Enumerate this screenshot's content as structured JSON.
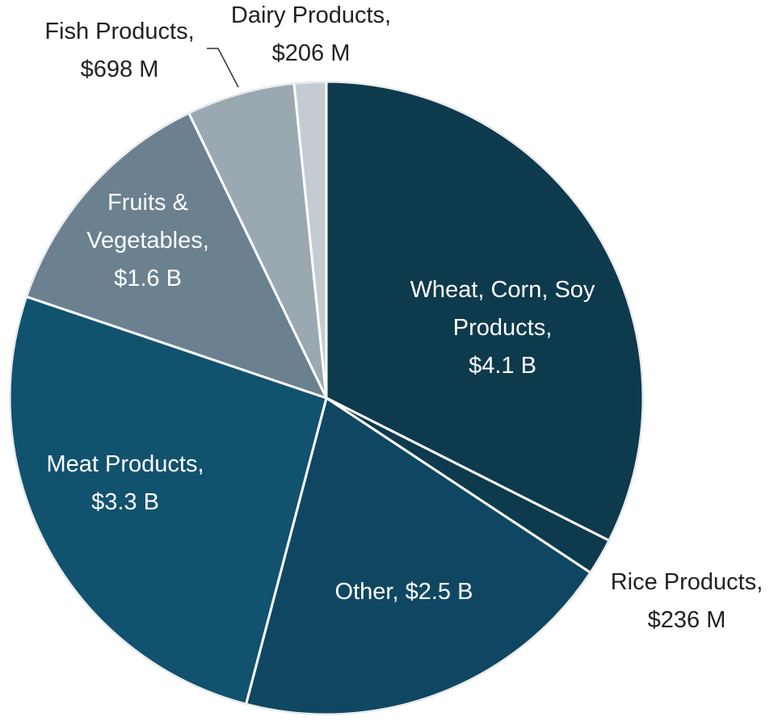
{
  "chart_data": {
    "type": "pie",
    "start_angle": "12 o'clock",
    "direction": "clockwise",
    "slices": [
      {
        "name": "Wheat, Corn, Soy Products",
        "value": 4.1,
        "label_lines": [
          "Wheat, Corn, Soy",
          "Products,",
          "$4.1 B"
        ],
        "color": "#0e3a4e",
        "text_color": "#ffffff"
      },
      {
        "name": "Rice Products",
        "value": 0.236,
        "label_lines": [
          "Rice Products,",
          "$236 M"
        ],
        "color": "#0e3a4e",
        "text_color": "#222222"
      },
      {
        "name": "Other",
        "value": 2.5,
        "label_lines": [
          "Other, $2.5 B"
        ],
        "color": "#0f4762",
        "text_color": "#ffffff"
      },
      {
        "name": "Meat Products",
        "value": 3.3,
        "label_lines": [
          "Meat Products,",
          "$3.3 B"
        ],
        "color": "#11526f",
        "text_color": "#ffffff"
      },
      {
        "name": "Fruits & Vegetables",
        "value": 1.6,
        "label_lines": [
          "Fruits &",
          "Vegetables,",
          "$1.6 B"
        ],
        "color": "#6b8190",
        "text_color": "#ffffff"
      },
      {
        "name": "Fish Products",
        "value": 0.698,
        "label_lines": [
          "Fish Products,",
          "$698 M"
        ],
        "color": "#9aa8b2",
        "text_color": "#222222"
      },
      {
        "name": "Dairy Products",
        "value": 0.206,
        "label_lines": [
          "Dairy Products,",
          "$206 M"
        ],
        "color": "#c3ccd3",
        "text_color": "#222222"
      }
    ]
  }
}
